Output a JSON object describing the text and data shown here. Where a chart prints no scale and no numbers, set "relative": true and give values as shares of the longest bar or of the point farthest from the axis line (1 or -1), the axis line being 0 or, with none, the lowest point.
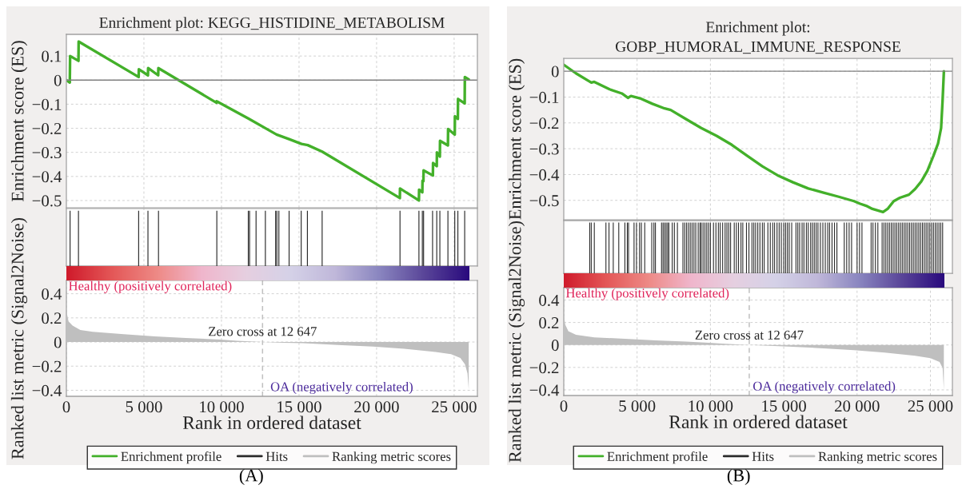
{
  "chart_data": [
    {
      "type": "line",
      "title": "Enrichment plot: KEGG_HISTIDINE_METABOLISM",
      "ylabel": "Enrichment score (ES)",
      "xlim": [
        0,
        26500
      ],
      "ylim": [
        -0.53,
        0.19
      ],
      "xticks": [
        5000,
        10000,
        15000,
        20000,
        25000
      ],
      "yticks": [
        {
          "value": -0.5,
          "label": "−0.5"
        },
        {
          "value": -0.4,
          "label": "−0.4"
        },
        {
          "value": -0.3,
          "label": "−0.3"
        },
        {
          "value": -0.2,
          "label": "−0.2"
        },
        {
          "value": -0.1,
          "label": "−0.1"
        },
        0,
        0.1
      ],
      "tick_labels": "y",
      "grid": true,
      "ref_lines": [
        {
          "axis": "y",
          "value": 0,
          "color": "#808080"
        }
      ],
      "series": [
        {
          "name": "Enrichment profile",
          "color": "#43b02a",
          "x": [
            0,
            220,
            240,
            780,
            790,
            4660,
            4670,
            5260,
            5270,
            5920,
            5930,
            9680,
            9690,
            11750,
            13550,
            14360,
            15160,
            15560,
            16490,
            21500,
            21510,
            22730,
            22740,
            22950,
            22960,
            23020,
            23030,
            23630,
            23640,
            23880,
            23890,
            24080,
            24090,
            24600,
            24610,
            25040,
            25050,
            25240,
            25250,
            25680,
            25690,
            25940
          ],
          "values": [
            0,
            -0.01,
            0.1,
            0.08,
            0.16,
            0.013,
            0.045,
            0.02,
            0.05,
            0.02,
            0.05,
            -0.094,
            -0.088,
            -0.16,
            -0.226,
            -0.245,
            -0.265,
            -0.27,
            -0.297,
            -0.49,
            -0.45,
            -0.5,
            -0.455,
            -0.466,
            -0.418,
            -0.42,
            -0.375,
            -0.396,
            -0.344,
            -0.357,
            -0.3,
            -0.318,
            -0.252,
            -0.271,
            -0.203,
            -0.226,
            -0.15,
            -0.161,
            -0.078,
            -0.097,
            0.013,
            0.003
          ]
        }
      ]
    },
    {
      "type": "bar",
      "relative": true,
      "xlim": [
        0,
        26500
      ],
      "xticks": [
        5000,
        10000,
        15000,
        20000,
        25000
      ],
      "tick_labels": false,
      "grid": "x",
      "series": [
        {
          "name": "Hits",
          "color": "#2b2b2b",
          "x": [
            240,
            780,
            4660,
            5260,
            5940,
            9700,
            11730,
            11810,
            12230,
            12830,
            13490,
            13570,
            13700,
            14360,
            15140,
            15540,
            16490,
            21510,
            22730,
            22950,
            23030,
            23610,
            23880,
            24080,
            24600,
            25040,
            25240,
            25680
          ],
          "values": [
            1,
            1,
            1,
            1,
            1,
            1,
            1,
            1,
            1,
            1,
            1,
            1,
            1,
            1,
            1,
            1,
            1,
            1,
            1,
            1,
            1,
            1,
            1,
            1,
            1,
            1,
            1,
            1
          ]
        }
      ]
    },
    {
      "type": "area",
      "xlabel": "Rank in ordered dataset",
      "ylabel": "Ranked list metric (Signal2Noise)",
      "xlim": [
        0,
        26500
      ],
      "ylim": [
        -0.45,
        0.51
      ],
      "xticks": [
        0,
        {
          "value": 5000,
          "label": "5 000"
        },
        {
          "value": 10000,
          "label": "10 000"
        },
        {
          "value": 15000,
          "label": "15 000"
        },
        {
          "value": 20000,
          "label": "20 000"
        },
        {
          "value": 25000,
          "label": "25 000"
        }
      ],
      "yticks": [
        {
          "value": -0.4,
          "label": "−0.4"
        },
        {
          "value": -0.2,
          "label": "−0.2"
        },
        0,
        0.2,
        0.4
      ],
      "grid": true,
      "legend": "bottom",
      "ref_lines": [
        {
          "axis": "x",
          "value": 12647,
          "label": "Zero cross at 12 647",
          "color": "#c0c0c0",
          "line_style": "dashed"
        }
      ],
      "annotations": [
        "Healthy (positively correlated)",
        "OA (negatively correlated)",
        "(A)"
      ],
      "series": [
        {
          "name": "Ranking metric scores",
          "color": "#bfbfbf",
          "x": [
            0,
            140,
            400,
            900,
            1700,
            3700,
            5700,
            7700,
            9940,
            11000,
            12647,
            14000,
            15260,
            17770,
            19780,
            21790,
            23800,
            24800,
            25400,
            25700,
            25860,
            25940
          ],
          "values": [
            0.26,
            0.17,
            0.136,
            0.1,
            0.085,
            0.064,
            0.046,
            0.033,
            0.02,
            0.01,
            0,
            -0.006,
            -0.01,
            -0.026,
            -0.038,
            -0.056,
            -0.082,
            -0.1,
            -0.133,
            -0.185,
            -0.26,
            -0.395
          ]
        }
      ]
    },
    {
      "type": "line",
      "title": "Enrichment plot:\nGOBP_HUMORAL_IMMUNE_RESPONSE",
      "ylabel": "Enrichment score (ES)",
      "xlim": [
        0,
        26500
      ],
      "ylim": [
        -0.575,
        0.05
      ],
      "xticks": [
        5000,
        10000,
        15000,
        20000,
        25000
      ],
      "yticks": [
        {
          "value": -0.5,
          "label": "−0.5"
        },
        {
          "value": -0.4,
          "label": "−0.4"
        },
        {
          "value": -0.3,
          "label": "−0.3"
        },
        {
          "value": -0.2,
          "label": "−0.2"
        },
        {
          "value": -0.1,
          "label": "−0.1"
        },
        0
      ],
      "tick_labels": "y",
      "grid": true,
      "ref_lines": [
        {
          "axis": "y",
          "value": 0,
          "color": "#808080"
        }
      ],
      "series": [
        {
          "name": "Enrichment profile",
          "color": "#43b02a",
          "x": [
            0,
            830,
            1880,
            2080,
            3125,
            3960,
            4375,
            4580,
            5200,
            6040,
            6875,
            7290,
            8330,
            9375,
            10420,
            11460,
            12500,
            13540,
            14580,
            15625,
            16670,
            17710,
            18750,
            19790,
            20210,
            20625,
            21040,
            21770,
            22080,
            22500,
            22920,
            23540,
            23960,
            24375,
            24790,
            25210,
            25520,
            25730,
            25830,
            25920
          ],
          "values": [
            0.025,
            -0.008,
            -0.044,
            -0.041,
            -0.07,
            -0.086,
            -0.103,
            -0.096,
            -0.105,
            -0.126,
            -0.144,
            -0.15,
            -0.185,
            -0.22,
            -0.25,
            -0.285,
            -0.327,
            -0.368,
            -0.403,
            -0.43,
            -0.454,
            -0.47,
            -0.486,
            -0.503,
            -0.513,
            -0.521,
            -0.533,
            -0.545,
            -0.533,
            -0.503,
            -0.49,
            -0.478,
            -0.456,
            -0.427,
            -0.386,
            -0.327,
            -0.28,
            -0.22,
            -0.114,
            0.0
          ]
        }
      ]
    },
    {
      "type": "bar",
      "relative": true,
      "xlim": [
        0,
        26500
      ],
      "xticks": [
        5000,
        10000,
        15000,
        20000,
        25000
      ],
      "tick_labels": false,
      "grid": "x",
      "series": [
        {
          "name": "Hits",
          "color": "#2b2b2b",
          "x": [
            1771,
            1875,
            2083,
            2875,
            3083,
            3375,
            3750,
            4167,
            4333,
            4417,
            4792,
            4958,
            5167,
            5292,
            5521,
            6000,
            6146,
            6250,
            6667,
            6771,
            6875,
            6979,
            7083,
            7167,
            7396,
            7542,
            7750,
            8125,
            8250,
            8375,
            8500,
            8625,
            8750,
            8875,
            9000,
            9167,
            9292,
            9375,
            9500,
            9625,
            9750,
            9875,
            10000,
            10208,
            10375,
            10542,
            10667,
            10833,
            11000,
            11125,
            11250,
            11375,
            11625,
            11771,
            11917,
            12083,
            12208,
            12458,
            12625,
            12833,
            12958,
            13083,
            13229,
            13375,
            13542,
            13667,
            13917,
            14083,
            14250,
            14375,
            14542,
            14688,
            14833,
            15000,
            15125,
            15250,
            15375,
            15542,
            15833,
            15958,
            16083,
            16250,
            16375,
            16542,
            16667,
            16833,
            16958,
            17083,
            17208,
            17333,
            17500,
            17667,
            17833,
            18000,
            18125,
            18292,
            18458,
            18625,
            19125,
            19292,
            19458,
            19625,
            20000,
            20167,
            20333,
            20958,
            21083,
            21250,
            21417,
            21708,
            21833,
            21958,
            22083,
            22208,
            22333,
            22458,
            22583,
            22708,
            22833,
            22958,
            23083,
            23208,
            23333,
            23458,
            23583,
            23708,
            23833,
            23958,
            24083,
            24208,
            24333,
            24458,
            24583,
            24708,
            24833,
            24958,
            25083,
            25208,
            25333,
            25458,
            25583,
            25708,
            25833
          ],
          "values": [
            1,
            1,
            1,
            1,
            1,
            1,
            1,
            1,
            1,
            1,
            1,
            1,
            1,
            1,
            1,
            1,
            1,
            1,
            1,
            1,
            1,
            1,
            1,
            1,
            1,
            1,
            1,
            1,
            1,
            1,
            1,
            1,
            1,
            1,
            1,
            1,
            1,
            1,
            1,
            1,
            1,
            1,
            1,
            1,
            1,
            1,
            1,
            1,
            1,
            1,
            1,
            1,
            1,
            1,
            1,
            1,
            1,
            1,
            1,
            1,
            1,
            1,
            1,
            1,
            1,
            1,
            1,
            1,
            1,
            1,
            1,
            1,
            1,
            1,
            1,
            1,
            1,
            1,
            1,
            1,
            1,
            1,
            1,
            1,
            1,
            1,
            1,
            1,
            1,
            1,
            1,
            1,
            1,
            1,
            1,
            1,
            1,
            1,
            1,
            1,
            1,
            1,
            1,
            1,
            1,
            1,
            1,
            1,
            1,
            1,
            1,
            1,
            1,
            1,
            1,
            1,
            1,
            1,
            1,
            1,
            1,
            1,
            1,
            1,
            1,
            1,
            1,
            1,
            1,
            1,
            1,
            1,
            1,
            1,
            1,
            1,
            1,
            1,
            1,
            1,
            1,
            1,
            1
          ]
        }
      ]
    },
    {
      "type": "area",
      "xlabel": "Rank in ordered dataset",
      "ylabel": "Ranked list metric (Signal2Noise)",
      "xlim": [
        0,
        26500
      ],
      "ylim": [
        -0.45,
        0.51
      ],
      "xticks": [
        0,
        {
          "value": 5000,
          "label": "5 000"
        },
        {
          "value": 10000,
          "label": "10 000"
        },
        {
          "value": 15000,
          "label": "15 000"
        },
        {
          "value": 20000,
          "label": "20 000"
        },
        {
          "value": 25000,
          "label": "25 000"
        }
      ],
      "yticks": [
        {
          "value": -0.4,
          "label": "−0.4"
        },
        {
          "value": -0.2,
          "label": "−0.2"
        },
        0,
        0.2,
        0.4
      ],
      "grid": true,
      "legend": "bottom",
      "ref_lines": [
        {
          "axis": "x",
          "value": 12647,
          "label": "Zero cross at 12 647",
          "color": "#c0c0c0",
          "line_style": "dashed"
        }
      ],
      "annotations": [
        "Healthy (positively correlated)",
        "OA (negatively correlated)",
        "(B)"
      ],
      "series": [
        {
          "name": "Ranking metric scores",
          "color": "#bfbfbf",
          "x": [
            0,
            104,
            313,
            833,
            2083,
            4167,
            6250,
            8333,
            9896,
            11000,
            12647,
            14000,
            15313,
            17708,
            19792,
            21875,
            23958,
            25000,
            25625,
            25833,
            25917
          ],
          "values": [
            0.27,
            0.18,
            0.123,
            0.09,
            0.068,
            0.055,
            0.041,
            0.03,
            0.019,
            0.01,
            0,
            -0.007,
            -0.014,
            -0.03,
            -0.047,
            -0.068,
            -0.096,
            -0.118,
            -0.151,
            -0.205,
            -0.4
          ]
        }
      ]
    }
  ]
}
